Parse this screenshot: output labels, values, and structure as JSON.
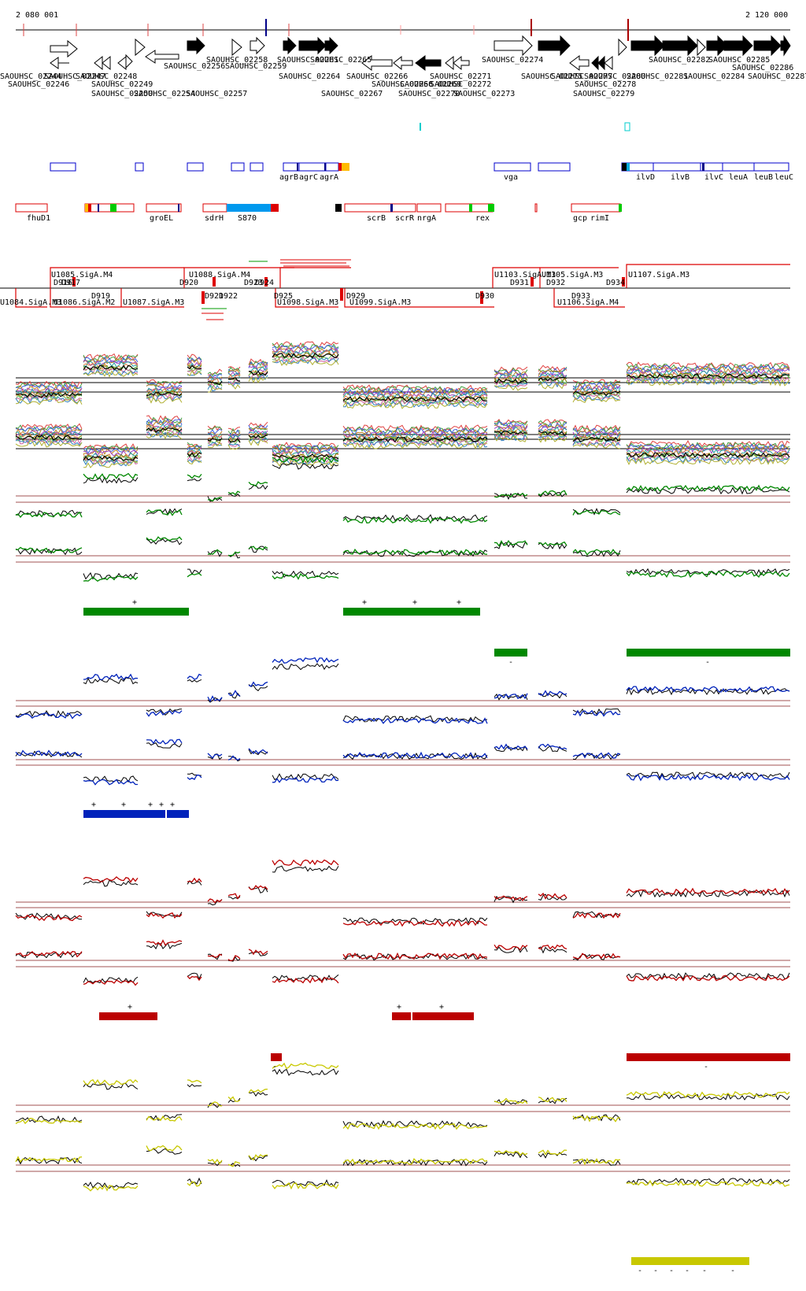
{
  "coords": {
    "start_label": "2 080 001",
    "end_label": "2 120 000"
  },
  "colors": {
    "green": "#008800",
    "blue": "#0022bb",
    "red": "#bb0000",
    "yellow": "#c8c800",
    "gene_box": "#0000cc",
    "feature_box": "#dd0000",
    "sigma": "#dd0000",
    "cyan": "#00cccc"
  },
  "genes_row1": [
    "SAOUHSC_02256",
    "SAOUHSC_02258",
    "SAOUHSC_02259",
    "SAOUHSC_02261",
    "SAOUHSC_02265",
    "SAOUHSC_02274",
    "SAOUHSC_02282",
    "SAOUHSC_02285"
  ],
  "genes_row2": [
    "SAOUHSC_02244",
    "SAOUHSC_02247",
    "SAOUHSC_02264",
    "SAOUHSC_02266",
    "SAOUHSC_02272",
    "SAOUHSC_02275",
    "SAOUHSC_02277",
    "SAOUHSC_02280",
    "SAOUHSC_02281",
    "SAOUHSC_02284",
    "SAOUHSC_02286",
    "SAOUHSC_02287"
  ],
  "genes_row3": [
    "SAOUHSC_02246",
    "SAOUHSC_02248",
    "SAOUHSC_02249",
    "SAOUHSC_02268",
    "SAOUHSC_02269",
    "SAOUHSC_02270",
    "SAOUHSC_02278"
  ],
  "genes_row4": [
    "SAOUHSC_02250",
    "SAOUHSC_02254",
    "SAOUHSC_02257",
    "SAOUHSC_02267",
    "SAOUHSC_02271",
    "SAOUHSC_02273",
    "SAOUHSC_02279"
  ],
  "gene_annot": [
    "agrB",
    "agrC",
    "agrA",
    "vga",
    "ilvD",
    "ilvB",
    "ilvC",
    "leuA",
    "leuB",
    "leuC"
  ],
  "feature_annot": [
    "fhuD1",
    "groEL",
    "sdrH",
    "S870",
    "scrB",
    "scrR",
    "nrgA",
    "rex",
    "gcp",
    "rimI"
  ],
  "sigma_upper": [
    "U1085.SigA.M4",
    "D916",
    "D917",
    "U1088.SigA.M4",
    "D920",
    "D923",
    "D924",
    "U1103.SigA.M3",
    "D931",
    "U1105.SigA.M3",
    "D932",
    "D934",
    "U1107.SigA.M3"
  ],
  "sigma_lower": [
    "U1084.SigA.M3",
    "U1086.SigA.M2",
    "D919",
    "U1087.SigA.M3",
    "D921",
    "D922",
    "D925",
    "U1098.SigA.M3",
    "D929",
    "U1099.SigA.M3",
    "D930",
    "D933",
    "U1106.SigA.M4"
  ],
  "markers": {
    "plus": "+",
    "minus": "-"
  }
}
